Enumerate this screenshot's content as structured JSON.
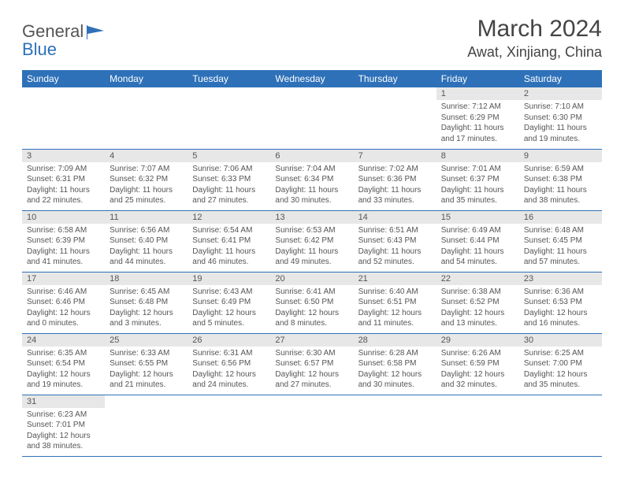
{
  "brand": {
    "part1": "General",
    "part2": "Blue"
  },
  "colors": {
    "header_bg": "#2e71b8",
    "header_fg": "#ffffff",
    "daynum_bg": "#e7e7e7",
    "text": "#555555",
    "rule": "#2e71b8"
  },
  "title": "March 2024",
  "location": "Awat, Xinjiang, China",
  "weekdays": [
    "Sunday",
    "Monday",
    "Tuesday",
    "Wednesday",
    "Thursday",
    "Friday",
    "Saturday"
  ],
  "weeks": [
    [
      null,
      null,
      null,
      null,
      null,
      {
        "num": "1",
        "sunrise": "Sunrise: 7:12 AM",
        "sunset": "Sunset: 6:29 PM",
        "day1": "Daylight: 11 hours",
        "day2": "and 17 minutes."
      },
      {
        "num": "2",
        "sunrise": "Sunrise: 7:10 AM",
        "sunset": "Sunset: 6:30 PM",
        "day1": "Daylight: 11 hours",
        "day2": "and 19 minutes."
      }
    ],
    [
      {
        "num": "3",
        "sunrise": "Sunrise: 7:09 AM",
        "sunset": "Sunset: 6:31 PM",
        "day1": "Daylight: 11 hours",
        "day2": "and 22 minutes."
      },
      {
        "num": "4",
        "sunrise": "Sunrise: 7:07 AM",
        "sunset": "Sunset: 6:32 PM",
        "day1": "Daylight: 11 hours",
        "day2": "and 25 minutes."
      },
      {
        "num": "5",
        "sunrise": "Sunrise: 7:06 AM",
        "sunset": "Sunset: 6:33 PM",
        "day1": "Daylight: 11 hours",
        "day2": "and 27 minutes."
      },
      {
        "num": "6",
        "sunrise": "Sunrise: 7:04 AM",
        "sunset": "Sunset: 6:34 PM",
        "day1": "Daylight: 11 hours",
        "day2": "and 30 minutes."
      },
      {
        "num": "7",
        "sunrise": "Sunrise: 7:02 AM",
        "sunset": "Sunset: 6:36 PM",
        "day1": "Daylight: 11 hours",
        "day2": "and 33 minutes."
      },
      {
        "num": "8",
        "sunrise": "Sunrise: 7:01 AM",
        "sunset": "Sunset: 6:37 PM",
        "day1": "Daylight: 11 hours",
        "day2": "and 35 minutes."
      },
      {
        "num": "9",
        "sunrise": "Sunrise: 6:59 AM",
        "sunset": "Sunset: 6:38 PM",
        "day1": "Daylight: 11 hours",
        "day2": "and 38 minutes."
      }
    ],
    [
      {
        "num": "10",
        "sunrise": "Sunrise: 6:58 AM",
        "sunset": "Sunset: 6:39 PM",
        "day1": "Daylight: 11 hours",
        "day2": "and 41 minutes."
      },
      {
        "num": "11",
        "sunrise": "Sunrise: 6:56 AM",
        "sunset": "Sunset: 6:40 PM",
        "day1": "Daylight: 11 hours",
        "day2": "and 44 minutes."
      },
      {
        "num": "12",
        "sunrise": "Sunrise: 6:54 AM",
        "sunset": "Sunset: 6:41 PM",
        "day1": "Daylight: 11 hours",
        "day2": "and 46 minutes."
      },
      {
        "num": "13",
        "sunrise": "Sunrise: 6:53 AM",
        "sunset": "Sunset: 6:42 PM",
        "day1": "Daylight: 11 hours",
        "day2": "and 49 minutes."
      },
      {
        "num": "14",
        "sunrise": "Sunrise: 6:51 AM",
        "sunset": "Sunset: 6:43 PM",
        "day1": "Daylight: 11 hours",
        "day2": "and 52 minutes."
      },
      {
        "num": "15",
        "sunrise": "Sunrise: 6:49 AM",
        "sunset": "Sunset: 6:44 PM",
        "day1": "Daylight: 11 hours",
        "day2": "and 54 minutes."
      },
      {
        "num": "16",
        "sunrise": "Sunrise: 6:48 AM",
        "sunset": "Sunset: 6:45 PM",
        "day1": "Daylight: 11 hours",
        "day2": "and 57 minutes."
      }
    ],
    [
      {
        "num": "17",
        "sunrise": "Sunrise: 6:46 AM",
        "sunset": "Sunset: 6:46 PM",
        "day1": "Daylight: 12 hours",
        "day2": "and 0 minutes."
      },
      {
        "num": "18",
        "sunrise": "Sunrise: 6:45 AM",
        "sunset": "Sunset: 6:48 PM",
        "day1": "Daylight: 12 hours",
        "day2": "and 3 minutes."
      },
      {
        "num": "19",
        "sunrise": "Sunrise: 6:43 AM",
        "sunset": "Sunset: 6:49 PM",
        "day1": "Daylight: 12 hours",
        "day2": "and 5 minutes."
      },
      {
        "num": "20",
        "sunrise": "Sunrise: 6:41 AM",
        "sunset": "Sunset: 6:50 PM",
        "day1": "Daylight: 12 hours",
        "day2": "and 8 minutes."
      },
      {
        "num": "21",
        "sunrise": "Sunrise: 6:40 AM",
        "sunset": "Sunset: 6:51 PM",
        "day1": "Daylight: 12 hours",
        "day2": "and 11 minutes."
      },
      {
        "num": "22",
        "sunrise": "Sunrise: 6:38 AM",
        "sunset": "Sunset: 6:52 PM",
        "day1": "Daylight: 12 hours",
        "day2": "and 13 minutes."
      },
      {
        "num": "23",
        "sunrise": "Sunrise: 6:36 AM",
        "sunset": "Sunset: 6:53 PM",
        "day1": "Daylight: 12 hours",
        "day2": "and 16 minutes."
      }
    ],
    [
      {
        "num": "24",
        "sunrise": "Sunrise: 6:35 AM",
        "sunset": "Sunset: 6:54 PM",
        "day1": "Daylight: 12 hours",
        "day2": "and 19 minutes."
      },
      {
        "num": "25",
        "sunrise": "Sunrise: 6:33 AM",
        "sunset": "Sunset: 6:55 PM",
        "day1": "Daylight: 12 hours",
        "day2": "and 21 minutes."
      },
      {
        "num": "26",
        "sunrise": "Sunrise: 6:31 AM",
        "sunset": "Sunset: 6:56 PM",
        "day1": "Daylight: 12 hours",
        "day2": "and 24 minutes."
      },
      {
        "num": "27",
        "sunrise": "Sunrise: 6:30 AM",
        "sunset": "Sunset: 6:57 PM",
        "day1": "Daylight: 12 hours",
        "day2": "and 27 minutes."
      },
      {
        "num": "28",
        "sunrise": "Sunrise: 6:28 AM",
        "sunset": "Sunset: 6:58 PM",
        "day1": "Daylight: 12 hours",
        "day2": "and 30 minutes."
      },
      {
        "num": "29",
        "sunrise": "Sunrise: 6:26 AM",
        "sunset": "Sunset: 6:59 PM",
        "day1": "Daylight: 12 hours",
        "day2": "and 32 minutes."
      },
      {
        "num": "30",
        "sunrise": "Sunrise: 6:25 AM",
        "sunset": "Sunset: 7:00 PM",
        "day1": "Daylight: 12 hours",
        "day2": "and 35 minutes."
      }
    ],
    [
      {
        "num": "31",
        "sunrise": "Sunrise: 6:23 AM",
        "sunset": "Sunset: 7:01 PM",
        "day1": "Daylight: 12 hours",
        "day2": "and 38 minutes."
      },
      null,
      null,
      null,
      null,
      null,
      null
    ]
  ]
}
